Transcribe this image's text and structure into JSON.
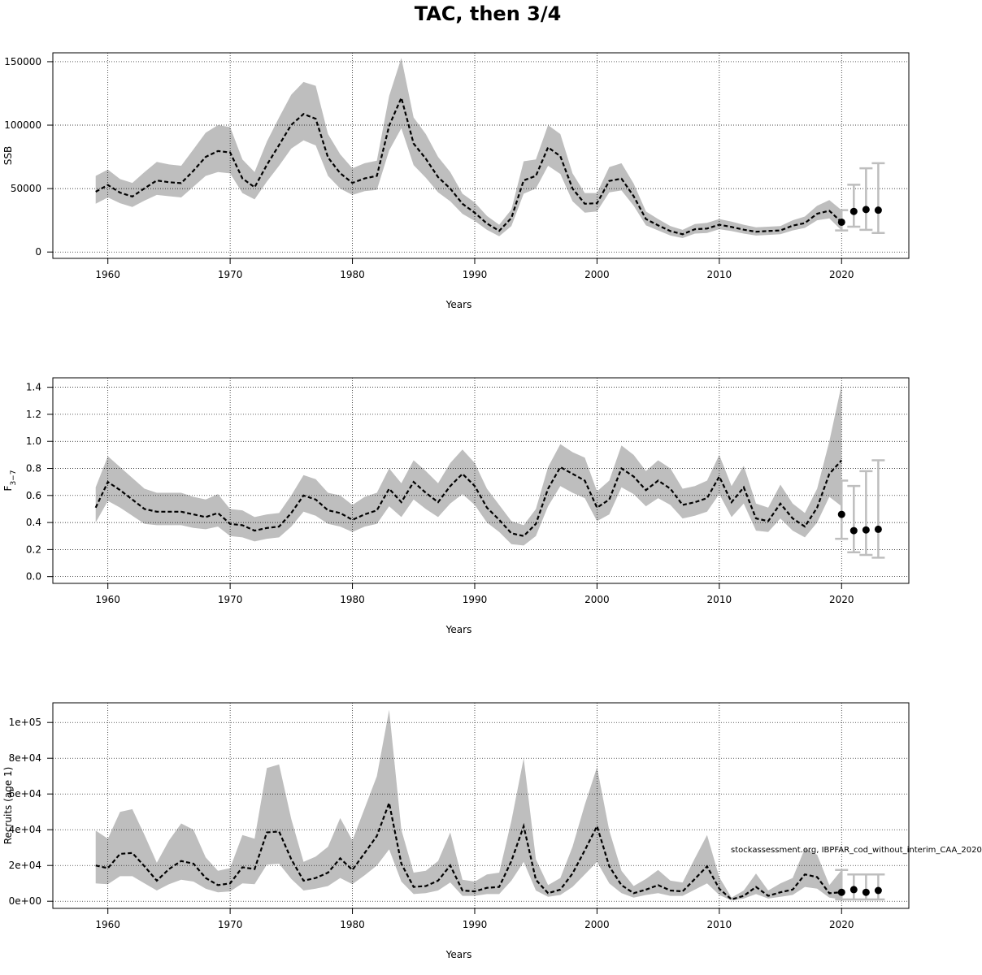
{
  "title": "TAC, then 3/4",
  "watermark": "stockassessment.org, IBPFAR_cod_without_interim_CAA_2020",
  "colors": {
    "band": "#bebebe",
    "line": "#000000",
    "forecast_bar": "#bebebe",
    "grid": "#000000"
  },
  "chart_data": [
    {
      "type": "line",
      "id": "ssb",
      "title": "",
      "xlabel": "Years",
      "ylabel": "SSB",
      "xlim": [
        1955.5,
        2025.5
      ],
      "ylim": [
        -5000,
        157000
      ],
      "xticks": [
        1960,
        1970,
        1980,
        1990,
        2000,
        2010,
        2020
      ],
      "xtick_labels": [
        "1960",
        "1970",
        "1980",
        "1990",
        "2000",
        "2010",
        "2020"
      ],
      "yticks": [
        0,
        50000,
        100000,
        150000
      ],
      "ytick_labels": [
        "0",
        "50000",
        "100000",
        "150000"
      ],
      "grid": true,
      "x": [
        1959,
        1960,
        1961,
        1962,
        1963,
        1964,
        1965,
        1966,
        1967,
        1968,
        1969,
        1970,
        1971,
        1972,
        1973,
        1974,
        1975,
        1976,
        1977,
        1978,
        1979,
        1980,
        1981,
        1982,
        1983,
        1984,
        1985,
        1986,
        1987,
        1988,
        1989,
        1990,
        1991,
        1992,
        1993,
        1994,
        1995,
        1996,
        1997,
        1998,
        1999,
        2000,
        2001,
        2002,
        2003,
        2004,
        2005,
        2006,
        2007,
        2008,
        2009,
        2010,
        2011,
        2012,
        2013,
        2014,
        2015,
        2016,
        2017,
        2018,
        2019,
        2020
      ],
      "estimate": [
        47500,
        52800,
        46800,
        43700,
        50200,
        56400,
        55000,
        54300,
        64100,
        75000,
        79600,
        78500,
        58000,
        51000,
        68700,
        84300,
        100200,
        108800,
        105000,
        74500,
        62100,
        54500,
        58000,
        60000,
        99500,
        121500,
        85500,
        73500,
        59000,
        50000,
        38000,
        31000,
        22500,
        16700,
        26800,
        56500,
        60000,
        82500,
        75500,
        50000,
        38000,
        38500,
        56000,
        57800,
        44000,
        26000,
        21000,
        16500,
        14000,
        18000,
        18500,
        21500,
        19800,
        17600,
        16000,
        16600,
        17000,
        20800,
        22800,
        30200,
        32500,
        23500
      ],
      "lower": [
        38000,
        43000,
        38500,
        35500,
        40500,
        45000,
        44000,
        43000,
        51500,
        60000,
        63000,
        62000,
        46500,
        41500,
        55500,
        68000,
        81500,
        88000,
        84000,
        60000,
        50000,
        45000,
        48000,
        49000,
        80000,
        97500,
        68500,
        58500,
        47000,
        40000,
        30000,
        24500,
        17500,
        12500,
        20500,
        46000,
        50000,
        68000,
        61500,
        40000,
        31000,
        32000,
        47000,
        48500,
        36500,
        21000,
        17000,
        13000,
        11000,
        14500,
        15000,
        18000,
        16500,
        14500,
        13000,
        13500,
        14000,
        17000,
        19000,
        25000,
        26500,
        17000
      ],
      "upper": [
        60000,
        65000,
        57500,
        54500,
        63000,
        71000,
        69000,
        68000,
        81000,
        94000,
        100000,
        98500,
        73000,
        63000,
        87000,
        106000,
        124000,
        134000,
        131000,
        93000,
        77000,
        66000,
        70000,
        72000,
        123000,
        153000,
        106000,
        93000,
        75000,
        63000,
        46000,
        39000,
        28500,
        21500,
        33500,
        71500,
        73000,
        100000,
        93000,
        62000,
        46500,
        46500,
        67000,
        70000,
        54000,
        32000,
        26000,
        20500,
        17500,
        22000,
        23000,
        26000,
        24000,
        21500,
        19500,
        20000,
        20500,
        25000,
        28000,
        36500,
        41000,
        33000
      ],
      "forecast": {
        "x": [
          2020,
          2021,
          2022,
          2023
        ],
        "value": [
          23500,
          32000,
          33500,
          33000
        ],
        "lower": [
          17000,
          20000,
          17500,
          15000
        ],
        "upper": [
          33000,
          53000,
          66000,
          70000
        ]
      }
    },
    {
      "type": "line",
      "id": "f",
      "title": "",
      "xlabel": "Years",
      "ylabel": "F",
      "ylabel_sub": "3−7",
      "xlim": [
        1955.5,
        2025.5
      ],
      "ylim": [
        -0.05,
        1.47
      ],
      "xticks": [
        1960,
        1970,
        1980,
        1990,
        2000,
        2010,
        2020
      ],
      "xtick_labels": [
        "1960",
        "1970",
        "1980",
        "1990",
        "2000",
        "2010",
        "2020"
      ],
      "yticks": [
        0,
        0.2,
        0.4,
        0.6,
        0.8,
        1.0,
        1.2,
        1.4
      ],
      "ytick_labels": [
        "0.0",
        "0.2",
        "0.4",
        "0.6",
        "0.8",
        "1.0",
        "1.2",
        "1.4"
      ],
      "grid": true,
      "x": [
        1959,
        1960,
        1961,
        1962,
        1963,
        1964,
        1965,
        1966,
        1967,
        1968,
        1969,
        1970,
        1971,
        1972,
        1973,
        1974,
        1975,
        1976,
        1977,
        1978,
        1979,
        1980,
        1981,
        1982,
        1983,
        1984,
        1985,
        1986,
        1987,
        1988,
        1989,
        1990,
        1991,
        1992,
        1993,
        1994,
        1995,
        1996,
        1997,
        1998,
        1999,
        2000,
        2001,
        2002,
        2003,
        2004,
        2005,
        2006,
        2007,
        2008,
        2009,
        2010,
        2011,
        2012,
        2013,
        2014,
        2015,
        2016,
        2017,
        2018,
        2019,
        2020
      ],
      "estimate": [
        0.51,
        0.7,
        0.64,
        0.57,
        0.5,
        0.48,
        0.48,
        0.48,
        0.46,
        0.44,
        0.47,
        0.39,
        0.38,
        0.34,
        0.36,
        0.37,
        0.47,
        0.6,
        0.57,
        0.49,
        0.47,
        0.42,
        0.46,
        0.49,
        0.65,
        0.55,
        0.7,
        0.62,
        0.55,
        0.67,
        0.76,
        0.67,
        0.51,
        0.42,
        0.32,
        0.3,
        0.39,
        0.65,
        0.81,
        0.76,
        0.71,
        0.51,
        0.57,
        0.8,
        0.74,
        0.64,
        0.71,
        0.65,
        0.53,
        0.55,
        0.58,
        0.74,
        0.55,
        0.66,
        0.43,
        0.41,
        0.54,
        0.43,
        0.37,
        0.51,
        0.76,
        0.86
      ],
      "lower": [
        0.4,
        0.56,
        0.51,
        0.45,
        0.39,
        0.38,
        0.38,
        0.38,
        0.36,
        0.35,
        0.37,
        0.3,
        0.29,
        0.26,
        0.28,
        0.29,
        0.37,
        0.48,
        0.45,
        0.39,
        0.37,
        0.33,
        0.37,
        0.39,
        0.52,
        0.44,
        0.57,
        0.5,
        0.44,
        0.54,
        0.61,
        0.53,
        0.4,
        0.33,
        0.24,
        0.23,
        0.3,
        0.52,
        0.67,
        0.62,
        0.58,
        0.41,
        0.46,
        0.66,
        0.61,
        0.52,
        0.58,
        0.53,
        0.43,
        0.45,
        0.48,
        0.61,
        0.44,
        0.54,
        0.34,
        0.33,
        0.43,
        0.34,
        0.29,
        0.4,
        0.59,
        0.52
      ],
      "upper": [
        0.66,
        0.89,
        0.81,
        0.73,
        0.65,
        0.62,
        0.62,
        0.62,
        0.59,
        0.57,
        0.61,
        0.5,
        0.49,
        0.44,
        0.46,
        0.47,
        0.6,
        0.75,
        0.72,
        0.62,
        0.6,
        0.53,
        0.59,
        0.62,
        0.8,
        0.69,
        0.86,
        0.78,
        0.69,
        0.84,
        0.94,
        0.84,
        0.65,
        0.53,
        0.41,
        0.38,
        0.5,
        0.81,
        0.98,
        0.92,
        0.88,
        0.63,
        0.71,
        0.97,
        0.9,
        0.78,
        0.86,
        0.8,
        0.65,
        0.67,
        0.71,
        0.9,
        0.67,
        0.82,
        0.54,
        0.51,
        0.68,
        0.54,
        0.47,
        0.65,
        1.0,
        1.42
      ],
      "forecast": {
        "x": [
          2020,
          2021,
          2022,
          2023
        ],
        "value": [
          0.46,
          0.34,
          0.345,
          0.35
        ],
        "lower": [
          0.28,
          0.18,
          0.16,
          0.14
        ],
        "upper": [
          0.71,
          0.67,
          0.78,
          0.86
        ]
      }
    },
    {
      "type": "line",
      "id": "recruits",
      "title": "",
      "xlabel": "Years",
      "ylabel": "Recruits (age 1)",
      "xlim": [
        1955.5,
        2025.5
      ],
      "ylim": [
        -4000,
        111000
      ],
      "xticks": [
        1960,
        1970,
        1980,
        1990,
        2000,
        2010,
        2020
      ],
      "xtick_labels": [
        "1960",
        "1970",
        "1980",
        "1990",
        "2000",
        "2010",
        "2020"
      ],
      "yticks": [
        0,
        20000,
        40000,
        60000,
        80000,
        100000
      ],
      "ytick_labels": [
        "0e+00",
        "2e+04",
        "4e+04",
        "6e+04",
        "8e+04",
        "1e+05"
      ],
      "grid": true,
      "x": [
        1959,
        1960,
        1961,
        1962,
        1963,
        1964,
        1965,
        1966,
        1967,
        1968,
        1969,
        1970,
        1971,
        1972,
        1973,
        1974,
        1975,
        1976,
        1977,
        1978,
        1979,
        1980,
        1981,
        1982,
        1983,
        1984,
        1985,
        1986,
        1987,
        1988,
        1989,
        1990,
        1991,
        1992,
        1993,
        1994,
        1995,
        1996,
        1997,
        1998,
        1999,
        2000,
        2001,
        2002,
        2003,
        2004,
        2005,
        2006,
        2007,
        2008,
        2009,
        2010,
        2011,
        2012,
        2013,
        2014,
        2015,
        2016,
        2017,
        2018,
        2019,
        2020
      ],
      "estimate": [
        20000,
        18500,
        26500,
        27000,
        19500,
        11500,
        18000,
        22500,
        21000,
        13000,
        9000,
        10000,
        19000,
        18000,
        38500,
        39000,
        23500,
        11500,
        13000,
        16000,
        24000,
        17500,
        27000,
        36500,
        55000,
        21000,
        8000,
        8500,
        11500,
        20000,
        6000,
        5500,
        7500,
        8000,
        22500,
        42000,
        12000,
        4500,
        6500,
        15500,
        28500,
        42000,
        19500,
        9000,
        4500,
        6500,
        9000,
        6000,
        5500,
        12500,
        19500,
        7000,
        1000,
        3000,
        8000,
        3000,
        5000,
        6500,
        15000,
        13500,
        4500,
        5000
      ],
      "lower": [
        10000,
        9500,
        14000,
        14000,
        10000,
        6000,
        9500,
        12000,
        11000,
        7000,
        5000,
        5500,
        10000,
        9500,
        20500,
        21000,
        12500,
        6000,
        7000,
        8500,
        13000,
        9500,
        14500,
        20000,
        29000,
        11000,
        4000,
        4500,
        6000,
        10500,
        3000,
        3000,
        4000,
        4000,
        11500,
        22000,
        6000,
        2500,
        3500,
        8000,
        15000,
        22000,
        10000,
        4500,
        2000,
        3500,
        4500,
        3000,
        3000,
        6500,
        10000,
        3500,
        400,
        1500,
        4000,
        1500,
        2500,
        3500,
        8000,
        7000,
        2000,
        1000
      ],
      "upper": [
        39500,
        35000,
        50000,
        51500,
        37000,
        21500,
        34000,
        43500,
        40000,
        24500,
        17000,
        18500,
        37000,
        35000,
        74500,
        76500,
        46000,
        22000,
        25000,
        30500,
        46500,
        34000,
        52000,
        70000,
        107000,
        40000,
        16000,
        17000,
        22500,
        38500,
        12000,
        11000,
        15000,
        16000,
        45000,
        80000,
        23500,
        9000,
        13000,
        30500,
        54000,
        75000,
        39500,
        17000,
        8500,
        12500,
        17500,
        11500,
        10500,
        24000,
        37000,
        13500,
        2000,
        6000,
        15500,
        6000,
        10000,
        13000,
        29500,
        26000,
        9000,
        17500
      ],
      "forecast": {
        "x": [
          2020,
          2021,
          2022,
          2023
        ],
        "value": [
          5000,
          6500,
          5000,
          6000
        ],
        "lower": [
          1000,
          1000,
          1000,
          1000
        ],
        "upper": [
          17500,
          15000,
          15000,
          15000
        ]
      }
    }
  ]
}
